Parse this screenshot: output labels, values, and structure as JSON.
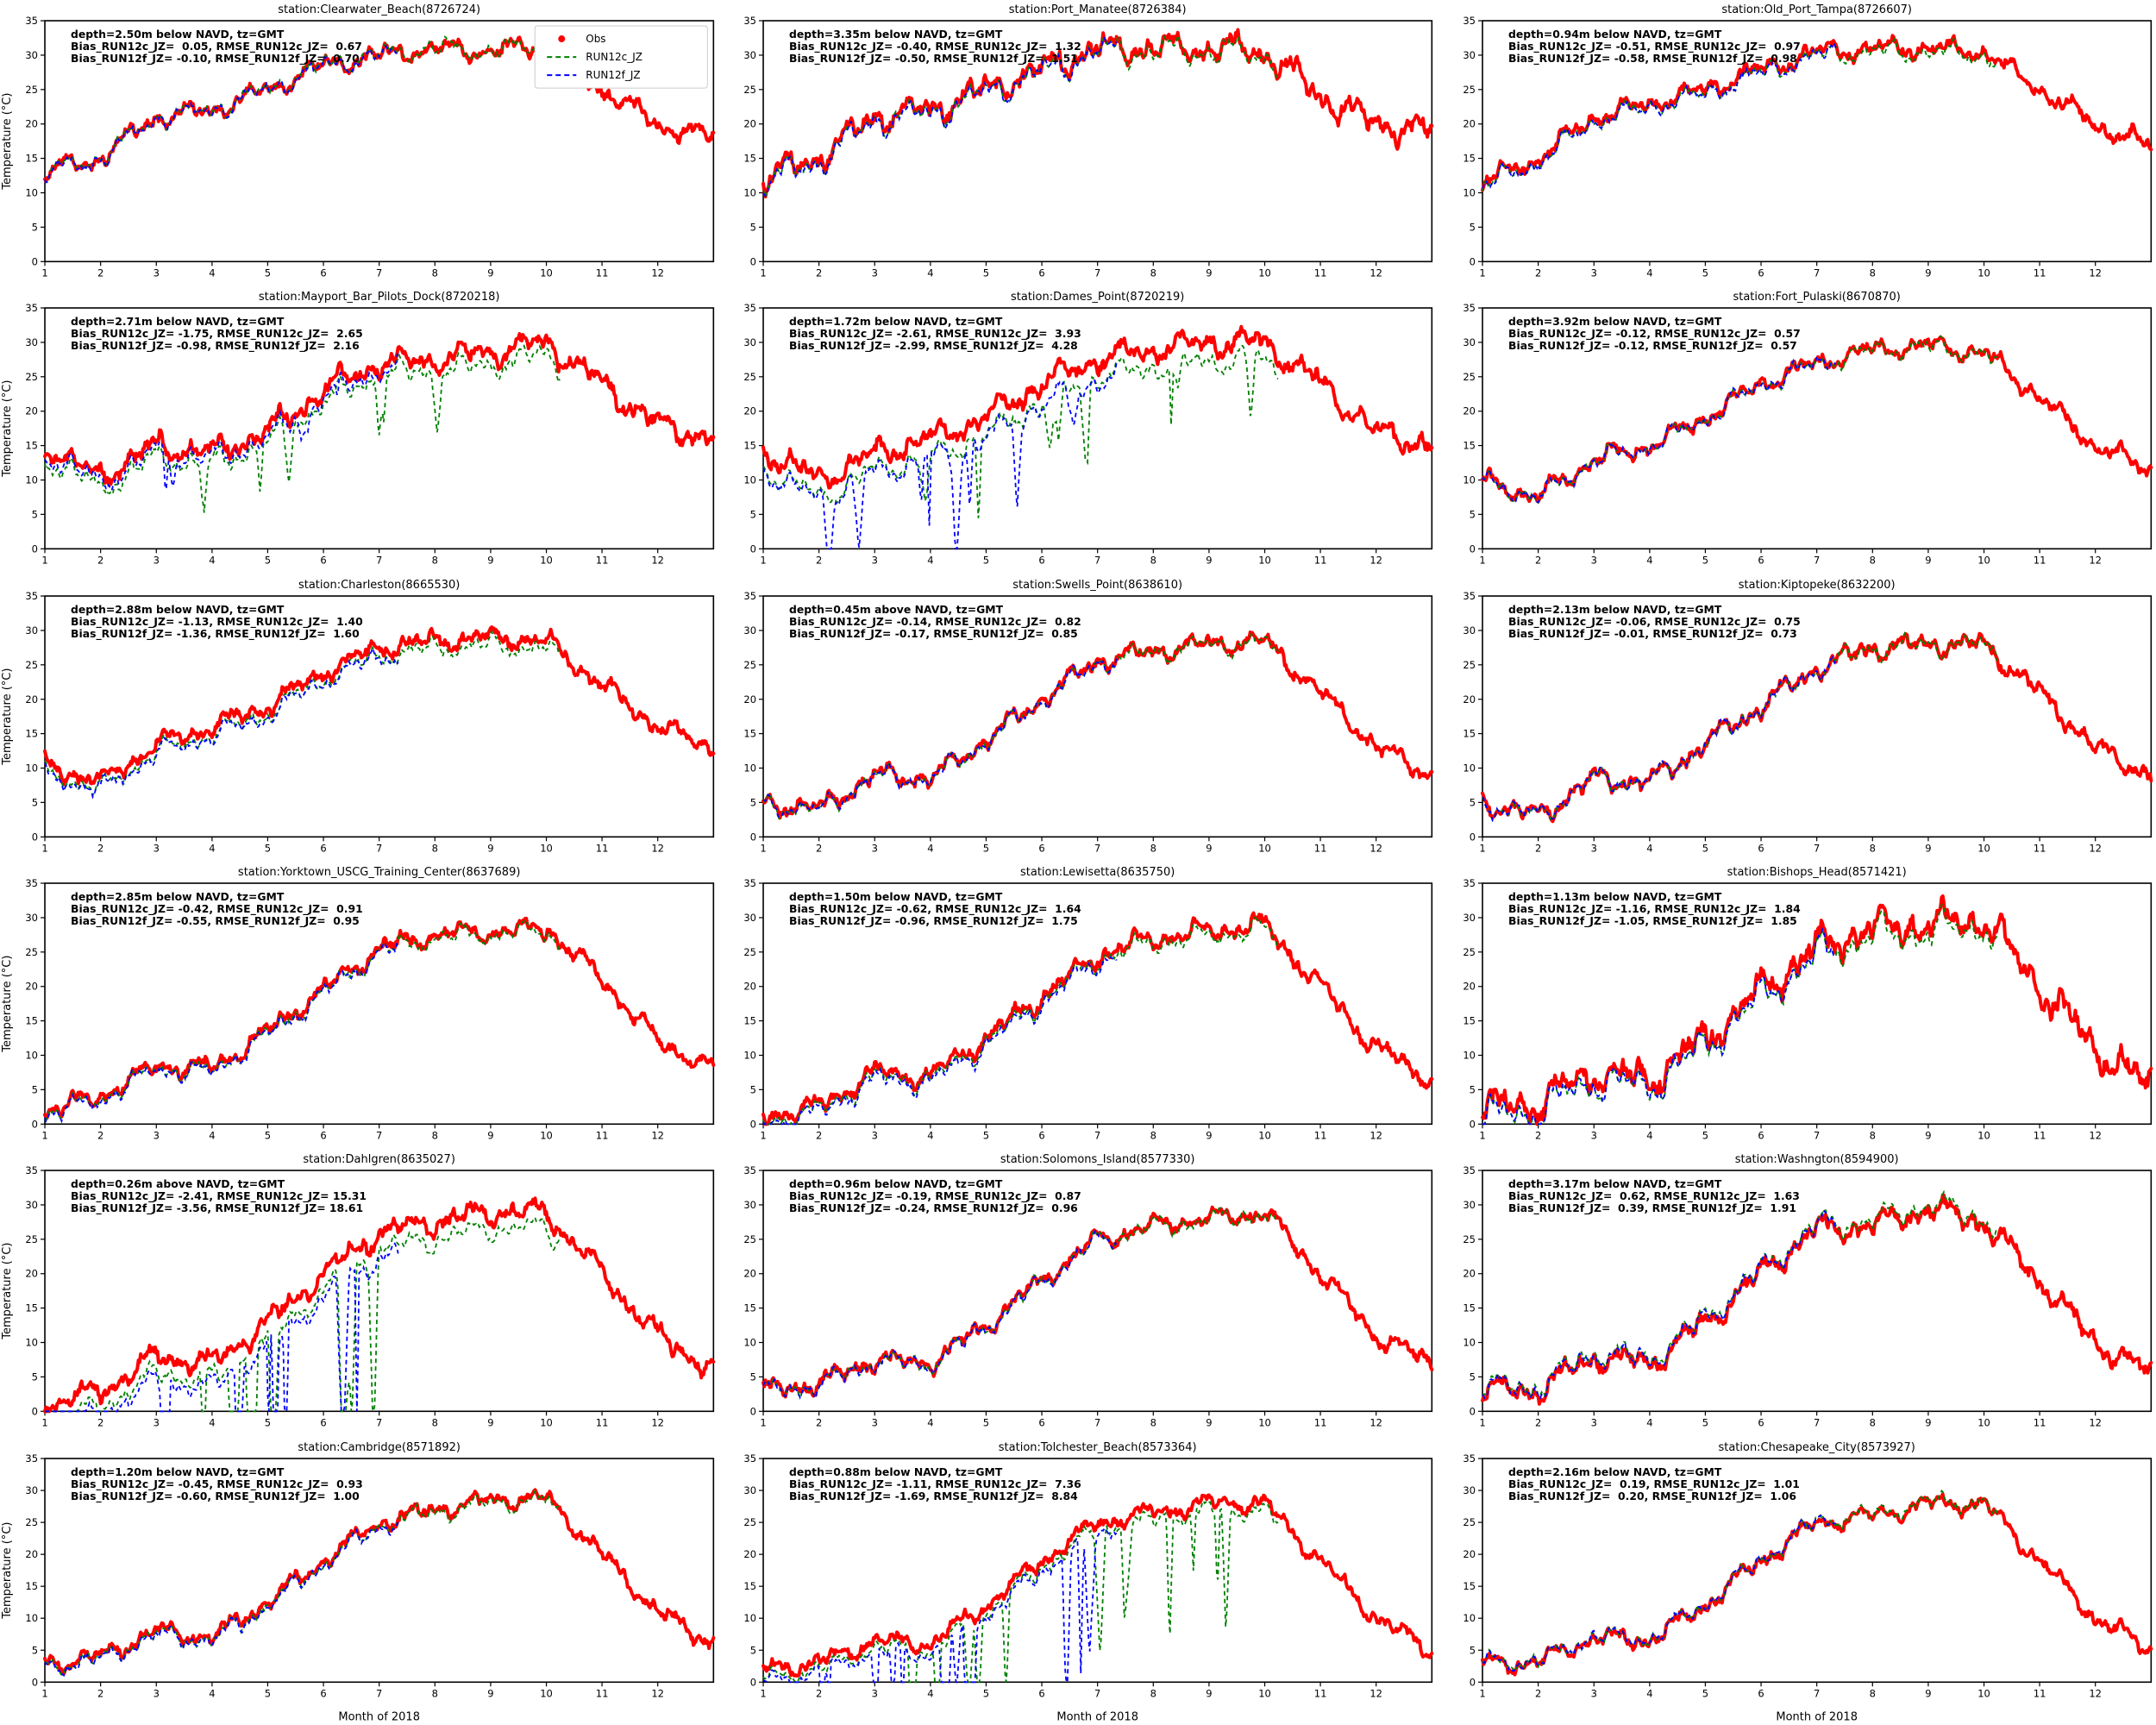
{
  "figure": {
    "xlabel": "Month of 2018",
    "ylabel": "Temperature (°C)",
    "xticks": [
      1,
      2,
      3,
      4,
      5,
      6,
      7,
      8,
      9,
      10,
      11,
      12
    ],
    "yticks": [
      0,
      5,
      10,
      15,
      20,
      25,
      30,
      35
    ],
    "xlim": [
      1,
      13
    ],
    "ylim": [
      0,
      35
    ],
    "grid": false,
    "rows": 6,
    "cols": 3,
    "colors": {
      "obs": "#ff0000",
      "run12c": "#008000",
      "run12f": "#0000ff",
      "axis": "#000000"
    },
    "legend": {
      "subplot_index": 0,
      "position": "upper right",
      "items": [
        {
          "label": "Obs",
          "marker": "dot",
          "color": "#ff0000"
        },
        {
          "label": "RUN12c_JZ",
          "marker": "dashed-line",
          "color": "#008000"
        },
        {
          "label": "RUN12f_JZ",
          "marker": "dashed-line",
          "color": "#0000ff"
        }
      ]
    },
    "annotation_labels": {
      "bias_c": "Bias_RUN12c_JZ",
      "rmse_c": "RMSE_RUN12c_JZ",
      "bias_f": "Bias_RUN12f_JZ",
      "rmse_f": "RMSE_RUN12f_JZ"
    },
    "model_x_end": {
      "run12c": 10.25,
      "run12f": 7.35
    }
  },
  "chart_data": [
    {
      "type": "line",
      "station": "Clearwater_Beach",
      "station_id": "8726724",
      "title": "station:Clearwater_Beach(8726724)",
      "depth_label": "depth=2.50m below NAVD, tz=GMT",
      "bias_run12c": 0.05,
      "rmse_run12c": 0.67,
      "bias_run12f": -0.1,
      "rmse_run12f": 0.7,
      "obs_noise": 1.0,
      "obs_monthly": [
        13,
        15,
        21,
        22,
        25,
        28.5,
        30,
        31,
        30.5,
        31.5,
        25,
        20,
        18
      ]
    },
    {
      "type": "line",
      "station": "Port_Manatee",
      "station_id": "8726384",
      "title": "station:Port_Manatee(8726384)",
      "depth_label": "depth=3.35m below NAVD, tz=GMT",
      "bias_run12c": -0.4,
      "rmse_run12c": 1.32,
      "bias_run12f": -0.5,
      "rmse_run12f": 1.51,
      "obs_noise": 1.5,
      "obs_monthly": [
        12,
        15,
        21,
        22,
        25,
        28,
        31,
        31,
        31,
        30.5,
        24,
        20,
        19
      ]
    },
    {
      "type": "line",
      "station": "Old_Port_Tampa",
      "station_id": "8726607",
      "title": "station:Old_Port_Tampa(8726607)",
      "depth_label": "depth=0.94m below NAVD, tz=GMT",
      "bias_run12c": -0.51,
      "rmse_run12c": 0.97,
      "bias_run12f": -0.58,
      "rmse_run12f": 0.98,
      "obs_noise": 1.0,
      "obs_monthly": [
        11.5,
        15,
        21,
        23,
        25,
        28,
        30.5,
        31,
        31,
        30.5,
        25,
        20,
        16.5
      ]
    },
    {
      "type": "line",
      "station": "Mayport_Bar_Pilots_Dock",
      "station_id": "8720218",
      "title": "station:Mayport_Bar_Pilots_Dock(8720218)",
      "depth_label": "depth=2.71m below NAVD, tz=GMT",
      "bias_run12c": -1.75,
      "rmse_run12c": 2.65,
      "bias_run12f": -0.98,
      "rmse_run12f": 2.16,
      "obs_noise": 1.3,
      "obs_monthly": [
        15,
        10.5,
        15,
        14,
        17,
        23,
        27,
        27.5,
        28.5,
        30,
        24,
        18,
        16
      ]
    },
    {
      "type": "line",
      "station": "Dames_Point",
      "station_id": "8720219",
      "title": "station:Dames_Point(8720219)",
      "depth_label": "depth=1.72m below NAVD, tz=GMT",
      "bias_run12c": -2.61,
      "rmse_run12c": 3.93,
      "bias_run12f": -2.99,
      "rmse_run12f": 4.28,
      "obs_noise": 1.3,
      "obs_monthly": [
        14.5,
        10,
        14,
        16,
        19,
        24,
        27.5,
        29,
        30,
        30,
        24,
        17,
        15
      ]
    },
    {
      "type": "line",
      "station": "Fort_Pulaski",
      "station_id": "8670870",
      "title": "station:Fort_Pulaski(8670870)",
      "depth_label": "depth=3.92m below NAVD, tz=GMT",
      "bias_run12c": -0.12,
      "rmse_run12c": 0.57,
      "bias_run12f": -0.12,
      "rmse_run12f": 0.57,
      "obs_noise": 1.0,
      "obs_monthly": [
        10,
        7.5,
        13,
        15,
        19,
        24,
        27,
        29,
        29.5,
        28.5,
        22,
        15,
        11.5
      ]
    },
    {
      "type": "line",
      "station": "Charleston",
      "station_id": "8665530",
      "title": "station:Charleston(8665530)",
      "depth_label": "depth=2.88m below NAVD, tz=GMT",
      "bias_run12c": -1.13,
      "rmse_run12c": 1.4,
      "bias_run12f": -1.36,
      "rmse_run12f": 1.6,
      "obs_noise": 1.0,
      "obs_monthly": [
        10.5,
        8,
        13.5,
        16,
        19,
        24,
        27.5,
        28.5,
        29,
        28.5,
        22,
        16,
        13
      ]
    },
    {
      "type": "line",
      "station": "Swells_Point",
      "station_id": "8638610",
      "title": "station:Swells_Point(8638610)",
      "depth_label": "depth=0.45m above NAVD, tz=GMT",
      "bias_run12c": -0.14,
      "rmse_run12c": 0.82,
      "bias_run12f": -0.17,
      "rmse_run12f": 0.85,
      "obs_noise": 1.0,
      "obs_monthly": [
        5,
        4,
        9,
        8.5,
        14,
        20,
        25.5,
        27,
        28,
        28.5,
        21,
        13,
        9
      ]
    },
    {
      "type": "line",
      "station": "Kiptopeke",
      "station_id": "8632200",
      "title": "station:Kiptopeke(8632200)",
      "depth_label": "depth=2.13m below NAVD, tz=GMT",
      "bias_run12c": -0.06,
      "rmse_run12c": 0.75,
      "bias_run12f": -0.01,
      "rmse_run12f": 0.73,
      "obs_noise": 1.1,
      "obs_monthly": [
        5,
        3,
        8.5,
        8,
        13.5,
        19,
        24.5,
        27.5,
        28,
        28,
        21,
        13,
        9
      ]
    },
    {
      "type": "line",
      "station": "Yorktown_USCG_Training_Center",
      "station_id": "8637689",
      "title": "station:Yorktown_USCG_Training_Center(8637689)",
      "depth_label": "depth=2.85m below NAVD, tz=GMT",
      "bias_run12c": -0.42,
      "rmse_run12c": 0.91,
      "bias_run12f": -0.55,
      "rmse_run12f": 0.95,
      "obs_noise": 1.0,
      "obs_monthly": [
        2,
        4,
        8.5,
        8,
        13.5,
        19.5,
        25.5,
        27.5,
        28,
        28.5,
        21,
        12,
        8
      ]
    },
    {
      "type": "line",
      "station": "Lewisetta",
      "station_id": "8635750",
      "title": "station:Lewisetta(8635750)",
      "depth_label": "depth=1.50m below NAVD, tz=GMT",
      "bias_run12c": -0.62,
      "rmse_run12c": 1.64,
      "bias_run12f": -0.96,
      "rmse_run12f": 1.75,
      "obs_noise": 1.1,
      "obs_monthly": [
        1,
        2.5,
        7.5,
        7,
        12.5,
        18.5,
        24.5,
        27,
        28,
        29,
        20,
        11,
        6.5
      ]
    },
    {
      "type": "line",
      "station": "Bishops_Head",
      "station_id": "8571421",
      "title": "station:Bishops_Head(8571421)",
      "depth_label": "depth=1.13m below NAVD, tz=GMT",
      "bias_run12c": -1.16,
      "rmse_run12c": 1.84,
      "bias_run12f": -1.05,
      "rmse_run12f": 1.85,
      "obs_noise": 1.9,
      "obs_monthly": [
        2,
        3,
        7.5,
        6.5,
        12.5,
        19.5,
        25.5,
        28.5,
        29,
        30,
        20,
        11,
        5
      ]
    },
    {
      "type": "line",
      "station": "Dahlgren",
      "station_id": "8635027",
      "title": "station:Dahlgren(8635027)",
      "depth_label": "depth=0.26m above NAVD, tz=GMT",
      "bias_run12c": -2.41,
      "rmse_run12c": 15.31,
      "bias_run12f": -3.56,
      "rmse_run12f": 18.61,
      "obs_noise": 1.2,
      "obs_monthly": [
        1,
        3,
        8,
        7,
        13,
        20,
        26,
        27.5,
        29,
        29,
        20,
        11,
        6
      ]
    },
    {
      "type": "line",
      "station": "Solomons_Island",
      "station_id": "8577330",
      "title": "station:Solomons_Island(8577330)",
      "depth_label": "depth=0.96m below NAVD, tz=GMT",
      "bias_run12c": -0.19,
      "rmse_run12c": 0.87,
      "bias_run12f": -0.24,
      "rmse_run12f": 0.96,
      "obs_noise": 1.0,
      "obs_monthly": [
        3,
        4,
        7.5,
        7,
        12.5,
        19,
        25,
        27,
        28,
        29,
        20,
        11,
        7
      ]
    },
    {
      "type": "line",
      "station": "Washngton",
      "station_id": "8594900",
      "title": "station:Washngton(8594900)",
      "depth_label": "depth=3.17m below NAVD, tz=GMT",
      "bias_run12c": 0.62,
      "rmse_run12c": 1.63,
      "bias_run12f": 0.39,
      "rmse_run12f": 1.91,
      "obs_noise": 1.3,
      "obs_monthly": [
        3,
        3,
        8,
        7,
        13,
        20,
        26.5,
        27,
        29.5,
        27.5,
        19,
        10,
        5.5
      ]
    },
    {
      "type": "line",
      "station": "Cambridge",
      "station_id": "8571892",
      "title": "station:Cambridge(8571892)",
      "depth_label": "depth=1.20m below NAVD, tz=GMT",
      "bias_run12c": -0.45,
      "rmse_run12c": 0.93,
      "bias_run12f": -0.6,
      "rmse_run12f": 1.0,
      "obs_noise": 1.0,
      "obs_monthly": [
        3,
        4,
        8,
        7,
        12.5,
        19,
        25,
        27,
        28.5,
        29,
        20,
        11,
        6
      ]
    },
    {
      "type": "line",
      "station": "Tolchester_Beach",
      "station_id": "8573364",
      "title": "station:Tolchester_Beach(8573364)",
      "depth_label": "depth=0.88m below NAVD, tz=GMT",
      "bias_run12c": -1.11,
      "rmse_run12c": 7.36,
      "bias_run12f": -1.69,
      "rmse_run12f": 8.84,
      "obs_noise": 1.0,
      "obs_monthly": [
        2,
        3,
        6.5,
        6,
        12,
        19,
        25,
        26.5,
        28,
        28,
        19,
        10,
        5
      ]
    },
    {
      "type": "line",
      "station": "Chesapeake_City",
      "station_id": "8573927",
      "title": "station:Chesapeake_City(8573927)",
      "depth_label": "depth=2.16m below NAVD, tz=GMT",
      "bias_run12c": 0.19,
      "rmse_run12c": 1.01,
      "bias_run12f": 0.2,
      "rmse_run12f": 1.06,
      "obs_noise": 1.0,
      "obs_monthly": [
        3,
        3,
        7,
        6.5,
        12,
        19,
        25,
        26,
        28,
        28,
        19,
        10,
        5
      ]
    }
  ]
}
